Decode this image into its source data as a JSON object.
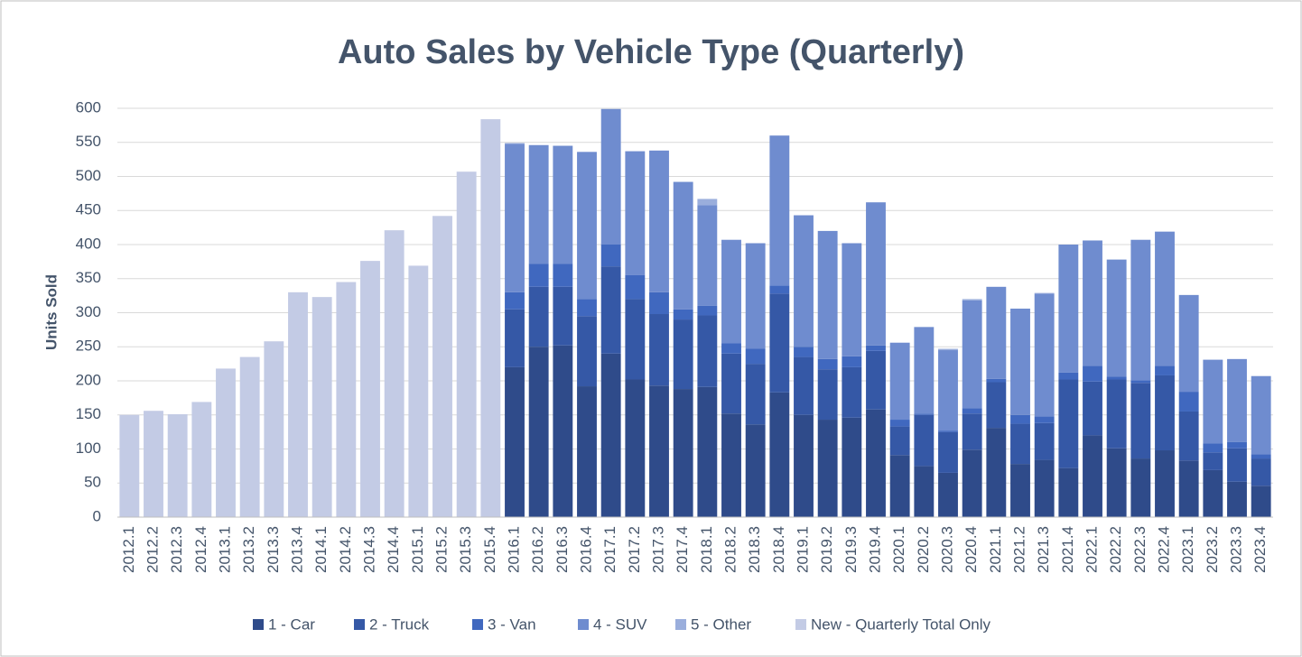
{
  "chart_data": {
    "type": "stacked_bar",
    "title": "Auto Sales by Vehicle Type (Quarterly)",
    "y_label": "Units Sold",
    "categories": [
      "2012.1",
      "2012.2",
      "2012.3",
      "2012.4",
      "2013.1",
      "2013.2",
      "2013.3",
      "2013.4",
      "2014.1",
      "2014.2",
      "2014.3",
      "2014.4",
      "2015.1",
      "2015.2",
      "2015.3",
      "2015.4",
      "2016.1",
      "2016.2",
      "2016.3",
      "2016.4",
      "2017.1",
      "2017.2",
      "2017.3",
      "2017.4",
      "2018.1",
      "2018.2",
      "2018.3",
      "2018.4",
      "2019.1",
      "2019.2",
      "2019.3",
      "2019.4",
      "2020.1",
      "2020.2",
      "2020.3",
      "2020.4",
      "2021.1",
      "2021.2",
      "2021.3",
      "2021.4",
      "2022.1",
      "2022.2",
      "2022.3",
      "2022.4",
      "2023.1",
      "2023.2",
      "2023.3",
      "2023.4"
    ],
    "series": [
      {
        "name": "1 - Car",
        "color": "#2f4b8a",
        "values": [
          null,
          null,
          null,
          null,
          null,
          null,
          null,
          null,
          null,
          null,
          null,
          null,
          null,
          null,
          null,
          null,
          220,
          250,
          252,
          192,
          240,
          202,
          193,
          188,
          191,
          152,
          136,
          183,
          150,
          143,
          146,
          158,
          91,
          75,
          65,
          99,
          131,
          78,
          84,
          72,
          120,
          101,
          86,
          98,
          83,
          69,
          52,
          46
        ]
      },
      {
        "name": "2 - Truck",
        "color": "#3558a6",
        "values": [
          null,
          null,
          null,
          null,
          null,
          null,
          null,
          null,
          null,
          null,
          null,
          null,
          null,
          null,
          null,
          null,
          85,
          88,
          86,
          103,
          128,
          118,
          105,
          102,
          105,
          88,
          89,
          145,
          85,
          74,
          74,
          86,
          42,
          75,
          60,
          53,
          67,
          59,
          54,
          130,
          79,
          101,
          111,
          110,
          72,
          26,
          49,
          40
        ]
      },
      {
        "name": "3 - Van",
        "color": "#4068bf",
        "values": [
          null,
          null,
          null,
          null,
          null,
          null,
          null,
          null,
          null,
          null,
          null,
          null,
          null,
          null,
          null,
          null,
          25,
          34,
          34,
          25,
          32,
          35,
          32,
          15,
          14,
          15,
          22,
          12,
          15,
          15,
          16,
          8,
          10,
          2,
          2,
          8,
          5,
          13,
          10,
          10,
          23,
          4,
          4,
          14,
          29,
          13,
          9,
          6
        ]
      },
      {
        "name": "4 - SUV",
        "color": "#6f8ccf",
        "values": [
          null,
          null,
          null,
          null,
          null,
          null,
          null,
          null,
          null,
          null,
          null,
          null,
          null,
          null,
          null,
          null,
          218,
          174,
          173,
          216,
          199,
          182,
          208,
          187,
          148,
          152,
          155,
          220,
          193,
          188,
          166,
          210,
          113,
          127,
          118,
          158,
          135,
          156,
          180,
          188,
          184,
          172,
          206,
          197,
          142,
          123,
          122,
          115
        ]
      },
      {
        "name": "5 - Other",
        "color": "#9aaedc",
        "values": [
          null,
          null,
          null,
          null,
          null,
          null,
          null,
          null,
          null,
          null,
          null,
          null,
          null,
          null,
          null,
          null,
          1,
          0,
          0,
          0,
          0,
          0,
          0,
          0,
          9,
          0,
          0,
          0,
          0,
          0,
          0,
          0,
          0,
          0,
          2,
          2,
          0,
          0,
          1,
          0,
          0,
          0,
          0,
          0,
          0,
          0,
          0,
          0
        ]
      },
      {
        "name": "New - Quarterly Total Only",
        "color": "#c3cbe5",
        "values": [
          150,
          156,
          151,
          169,
          218,
          235,
          258,
          330,
          323,
          345,
          376,
          421,
          369,
          442,
          507,
          584,
          null,
          null,
          null,
          null,
          null,
          null,
          null,
          null,
          null,
          null,
          null,
          null,
          null,
          null,
          null,
          null,
          null,
          null,
          null,
          null,
          null,
          null,
          null,
          null,
          null,
          null,
          null,
          null,
          null,
          null,
          null,
          null
        ]
      }
    ],
    "ylim": [
      0,
      600
    ],
    "yticks": [
      0,
      50,
      100,
      150,
      200,
      250,
      300,
      350,
      400,
      450,
      500,
      550,
      600
    ],
    "grid": true,
    "legend": "bottom"
  }
}
